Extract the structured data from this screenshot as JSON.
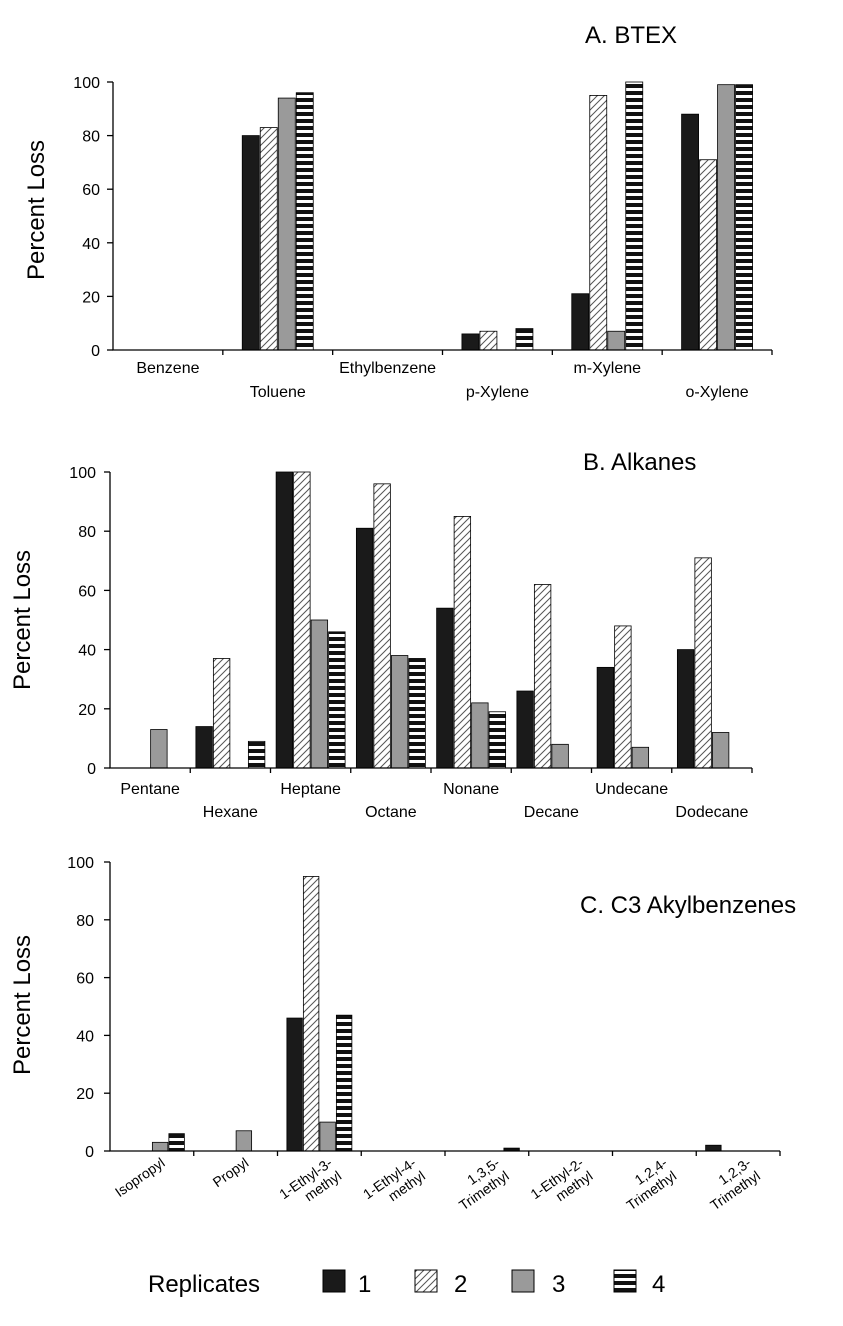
{
  "chart_data": [
    {
      "type": "bar",
      "title": "A.   BTEX",
      "ylabel": "Percent Loss",
      "ylim": [
        0,
        100
      ],
      "yticks": [
        "0",
        "20",
        "40",
        "60",
        "80",
        "100"
      ],
      "categories": [
        "Benzene",
        "Toluene",
        "Ethylbenzene",
        "p-Xylene",
        "m-Xylene",
        "o-Xylene"
      ],
      "series": [
        {
          "name": "1",
          "values": [
            0,
            80,
            0,
            6,
            21,
            88
          ]
        },
        {
          "name": "2",
          "values": [
            0,
            83,
            0,
            7,
            95,
            71
          ]
        },
        {
          "name": "3",
          "values": [
            0,
            94,
            0,
            0,
            7,
            99
          ]
        },
        {
          "name": "4",
          "values": [
            0,
            96,
            0,
            8,
            100,
            99
          ]
        }
      ]
    },
    {
      "type": "bar",
      "title": "B.   Alkanes",
      "ylabel": "Percent Loss",
      "ylim": [
        0,
        100
      ],
      "yticks": [
        "0",
        "20",
        "40",
        "60",
        "80",
        "100"
      ],
      "categories": [
        "Pentane",
        "Hexane",
        "Heptane",
        "Octane",
        "Nonane",
        "Decane",
        "Undecane",
        "Dodecane"
      ],
      "series": [
        {
          "name": "1",
          "values": [
            0,
            14,
            100,
            81,
            54,
            26,
            34,
            40
          ]
        },
        {
          "name": "2",
          "values": [
            0,
            37,
            100,
            96,
            85,
            62,
            48,
            71
          ]
        },
        {
          "name": "3",
          "values": [
            13,
            0,
            50,
            38,
            22,
            8,
            7,
            12
          ]
        },
        {
          "name": "4",
          "values": [
            0,
            9,
            46,
            37,
            19,
            0,
            0,
            0
          ]
        }
      ]
    },
    {
      "type": "bar",
      "title": "C.  C3 Akylbenzenes",
      "ylabel": "Percent Loss",
      "ylim": [
        0,
        100
      ],
      "yticks": [
        "0",
        "20",
        "40",
        "60",
        "80",
        "100"
      ],
      "categories": [
        "Isopropyl",
        "Propyl",
        "1-Ethyl-3-\nmethyl",
        "1-Ethyl-4-\nmethyl",
        "1,3,5-\nTrimethyl",
        "1-Ethyl-2-\nmethyl",
        "1,2,4-\nTrimethyl",
        "1,2,3-\nTrimethyl"
      ],
      "series": [
        {
          "name": "1",
          "values": [
            0,
            0,
            46,
            0,
            0,
            0,
            0,
            2
          ]
        },
        {
          "name": "2",
          "values": [
            0,
            0,
            95,
            0,
            0,
            0,
            0,
            0
          ]
        },
        {
          "name": "3",
          "values": [
            3,
            7,
            10,
            0,
            0,
            0,
            0,
            0
          ]
        },
        {
          "name": "4",
          "values": [
            6,
            0,
            47,
            0,
            1,
            0,
            0,
            0
          ]
        }
      ]
    }
  ],
  "legend": {
    "title": "Replicates",
    "entries": [
      "1",
      "2",
      "3",
      "4"
    ]
  },
  "series_colors": {
    "1": "#1a1a1a",
    "2": "hatched-diagonal",
    "3": "#9a9a9a",
    "4": "black-white-horizontal-stripes"
  }
}
